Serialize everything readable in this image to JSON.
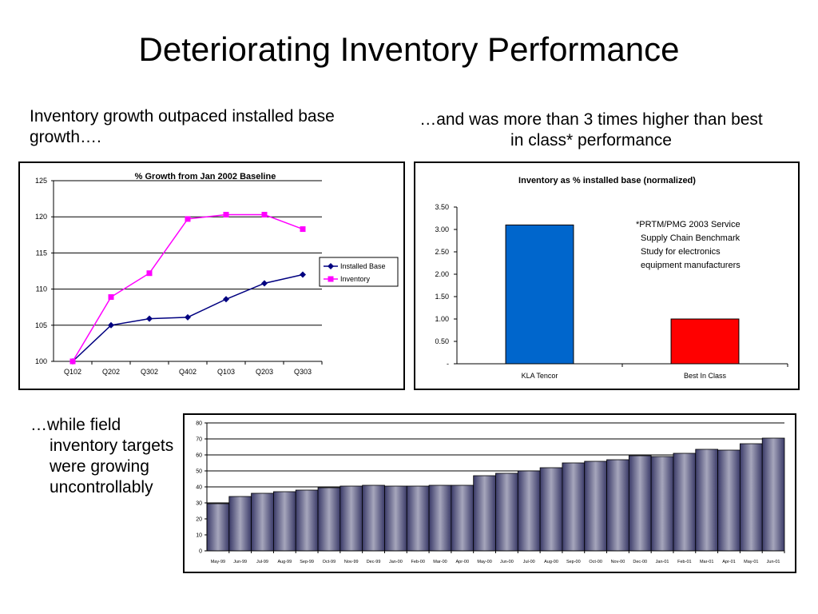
{
  "page": {
    "title": "Deteriorating Inventory Performance",
    "caption_left": "Inventory growth outpaced installed base growth….",
    "caption_right": "…and was more than 3 times higher than best in class* performance",
    "caption_bottom_lead": "…while field",
    "caption_bottom_rest": "inventory targets were growing uncontrollably"
  },
  "chart_data": [
    {
      "type": "line",
      "title": "% Growth from Jan 2002 Baseline",
      "x": [
        "Q102",
        "Q202",
        "Q302",
        "Q402",
        "Q103",
        "Q203",
        "Q303"
      ],
      "series": [
        {
          "name": "Installed Base",
          "color": "#000080",
          "marker": "diamond",
          "values": [
            100,
            105,
            105.9,
            106.1,
            108.6,
            110.8,
            112
          ]
        },
        {
          "name": "Inventory",
          "color": "#ff00ff",
          "marker": "square",
          "values": [
            100,
            108.9,
            112.2,
            119.7,
            120.3,
            120.3,
            118.3
          ]
        }
      ],
      "ylim": [
        100,
        125
      ],
      "yticks": [
        100,
        105,
        110,
        115,
        120,
        125
      ],
      "grid": true,
      "legend": "right"
    },
    {
      "type": "bar",
      "title": "Inventory as % installed base (normalized)",
      "categories": [
        "KLA Tencor",
        "Best In Class"
      ],
      "values": [
        3.1,
        1.0
      ],
      "colors": [
        "#0066cc",
        "#ff0000"
      ],
      "ylim": [
        0,
        3.5
      ],
      "yticks": [
        "-",
        "0.50",
        "1.00",
        "1.50",
        "2.00",
        "2.50",
        "3.00",
        "3.50"
      ],
      "annotation": [
        "*PRTM/PMG 2003 Service",
        "Supply Chain Benchmark",
        "Study for electronics",
        "equipment manufacturers"
      ],
      "grid": false
    },
    {
      "type": "bar",
      "title": "",
      "categories": [
        "May-99",
        "Jun-99",
        "Jul-99",
        "Aug-99",
        "Sep-99",
        "Oct-99",
        "Nov-99",
        "Dec-99",
        "Jan-00",
        "Feb-00",
        "Mar-00",
        "Apr-00",
        "May-00",
        "Jun-00",
        "Jul-00",
        "Aug-00",
        "Sep-00",
        "Oct-00",
        "Nov-00",
        "Dec-00",
        "Jan-01",
        "Feb-01",
        "Mar-01",
        "Apr-01",
        "May-01",
        "Jun-01"
      ],
      "values": [
        29.5,
        34,
        36,
        37,
        38,
        39.5,
        40.5,
        41,
        40.5,
        40.5,
        41,
        41,
        47,
        48.5,
        50,
        52,
        55,
        56,
        57,
        59.5,
        59,
        61,
        63.5,
        63,
        67,
        70.5
      ],
      "color": "#5c5c8a",
      "ylim": [
        0,
        80
      ],
      "yticks": [
        0,
        10,
        20,
        30,
        40,
        50,
        60,
        70,
        80
      ],
      "grid": true
    }
  ]
}
